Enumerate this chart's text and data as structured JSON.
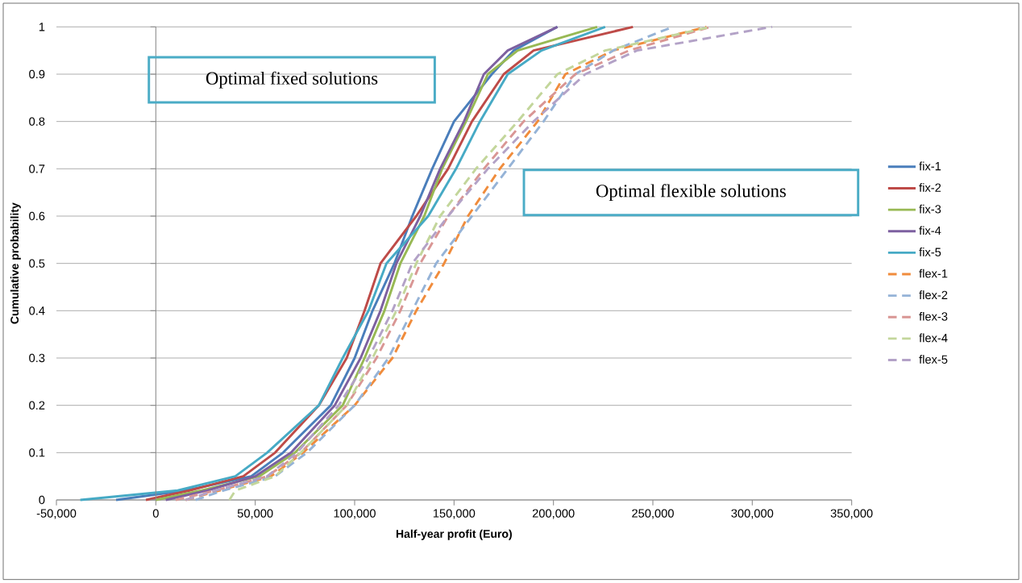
{
  "chart_data": {
    "type": "line",
    "xlabel": "Half-year profit (Euro)",
    "ylabel": "Cumulative probability",
    "annotations": [
      "Optimal fixed solutions",
      "Optimal flexible solutions"
    ],
    "xlim": [
      -50000,
      350000
    ],
    "xticks": [
      {
        "value": -50000,
        "label": "-50,000"
      },
      {
        "value": 0,
        "label": "0"
      },
      {
        "value": 50000,
        "label": "50,000"
      },
      {
        "value": 100000,
        "label": "100,000"
      },
      {
        "value": 150000,
        "label": "150,000"
      },
      {
        "value": 200000,
        "label": "200,000"
      },
      {
        "value": 250000,
        "label": "250,000"
      },
      {
        "value": 300000,
        "label": "300,000"
      },
      {
        "value": 350000,
        "label": "350,000"
      }
    ],
    "ylim": [
      0,
      1
    ],
    "yticks": [
      0,
      0.1,
      0.2,
      0.3,
      0.4,
      0.5,
      0.6,
      0.7,
      0.8,
      0.9,
      1
    ],
    "grid": "y",
    "legend": "right",
    "marker": "none",
    "series": [
      {
        "name": "fix-1",
        "color": "#4a7ebb",
        "line_style": "solid",
        "x": [
          -20000,
          15000,
          48000,
          64000,
          88000,
          100000,
          109000,
          120000,
          129000,
          139000,
          150000,
          169000,
          180000,
          202000
        ],
        "values": [
          0,
          0.02,
          0.05,
          0.1,
          0.2,
          0.3,
          0.4,
          0.5,
          0.6,
          0.7,
          0.8,
          0.9,
          0.95,
          1
        ]
      },
      {
        "name": "fix-2",
        "color": "#be4b48",
        "line_style": "solid",
        "x": [
          -5000,
          17000,
          44000,
          60000,
          82000,
          96000,
          105000,
          113000,
          131000,
          147000,
          159000,
          175000,
          190000,
          240000
        ],
        "values": [
          0,
          0.02,
          0.05,
          0.1,
          0.2,
          0.3,
          0.4,
          0.5,
          0.6,
          0.7,
          0.8,
          0.9,
          0.95,
          1
        ]
      },
      {
        "name": "fix-3",
        "color": "#98b954",
        "line_style": "solid",
        "x": [
          0,
          23000,
          52000,
          70000,
          94000,
          105000,
          115000,
          123000,
          135000,
          144000,
          156000,
          167000,
          182000,
          222000
        ],
        "values": [
          0,
          0.02,
          0.05,
          0.1,
          0.2,
          0.3,
          0.4,
          0.5,
          0.6,
          0.7,
          0.8,
          0.9,
          0.95,
          1
        ]
      },
      {
        "name": "fix-4",
        "color": "#7d60a0",
        "line_style": "solid",
        "x": [
          5000,
          26000,
          50000,
          68000,
          90000,
          103000,
          113000,
          121000,
          133000,
          143000,
          155000,
          165000,
          177000,
          202000
        ],
        "values": [
          0,
          0.02,
          0.05,
          0.1,
          0.2,
          0.3,
          0.4,
          0.5,
          0.6,
          0.7,
          0.8,
          0.9,
          0.95,
          1
        ]
      },
      {
        "name": "fix-5",
        "color": "#46aac5",
        "line_style": "solid",
        "x": [
          -38000,
          11000,
          40000,
          56000,
          82000,
          94000,
          107000,
          116000,
          137000,
          151000,
          163000,
          177000,
          194000,
          226000
        ],
        "values": [
          0,
          0.02,
          0.05,
          0.1,
          0.2,
          0.3,
          0.4,
          0.5,
          0.6,
          0.7,
          0.8,
          0.9,
          0.95,
          1
        ]
      },
      {
        "name": "flex-1",
        "color": "#f08c3c",
        "line_style": "dashed",
        "x": [
          15000,
          32000,
          58000,
          74000,
          100000,
          119000,
          131000,
          145000,
          157000,
          173000,
          192000,
          206000,
          230000,
          277000
        ],
        "values": [
          0,
          0.02,
          0.05,
          0.1,
          0.2,
          0.3,
          0.4,
          0.5,
          0.6,
          0.7,
          0.8,
          0.9,
          0.95,
          1
        ]
      },
      {
        "name": "flex-2",
        "color": "#95b3d7",
        "line_style": "dashed",
        "x": [
          20000,
          34000,
          60000,
          76000,
          100000,
          117000,
          129000,
          141000,
          159000,
          177000,
          195000,
          211000,
          230000,
          260000
        ],
        "values": [
          0,
          0.02,
          0.05,
          0.1,
          0.2,
          0.3,
          0.4,
          0.5,
          0.6,
          0.7,
          0.8,
          0.9,
          0.95,
          1
        ]
      },
      {
        "name": "flex-3",
        "color": "#d99694",
        "line_style": "dashed",
        "x": [
          10000,
          30000,
          56000,
          73000,
          96000,
          111000,
          123000,
          133000,
          147000,
          165000,
          185000,
          211000,
          238000,
          279000
        ],
        "values": [
          0,
          0.02,
          0.05,
          0.1,
          0.2,
          0.3,
          0.4,
          0.5,
          0.6,
          0.7,
          0.8,
          0.9,
          0.95,
          1
        ]
      },
      {
        "name": "flex-4",
        "color": "#c3d69b",
        "line_style": "dashed",
        "x": [
          37000,
          40000,
          60000,
          73000,
          96000,
          109000,
          121000,
          131000,
          143000,
          161000,
          182000,
          202000,
          226000,
          279000
        ],
        "values": [
          0,
          0.02,
          0.05,
          0.1,
          0.2,
          0.3,
          0.4,
          0.5,
          0.6,
          0.7,
          0.8,
          0.9,
          0.95,
          1
        ]
      },
      {
        "name": "flex-5",
        "color": "#b3a2c7",
        "line_style": "dashed",
        "x": [
          15000,
          30000,
          56000,
          71000,
          92000,
          107000,
          119000,
          129000,
          147000,
          167000,
          190000,
          216000,
          242000,
          310000
        ],
        "values": [
          0,
          0.02,
          0.05,
          0.1,
          0.2,
          0.3,
          0.4,
          0.5,
          0.6,
          0.7,
          0.8,
          0.9,
          0.95,
          1
        ]
      }
    ]
  }
}
